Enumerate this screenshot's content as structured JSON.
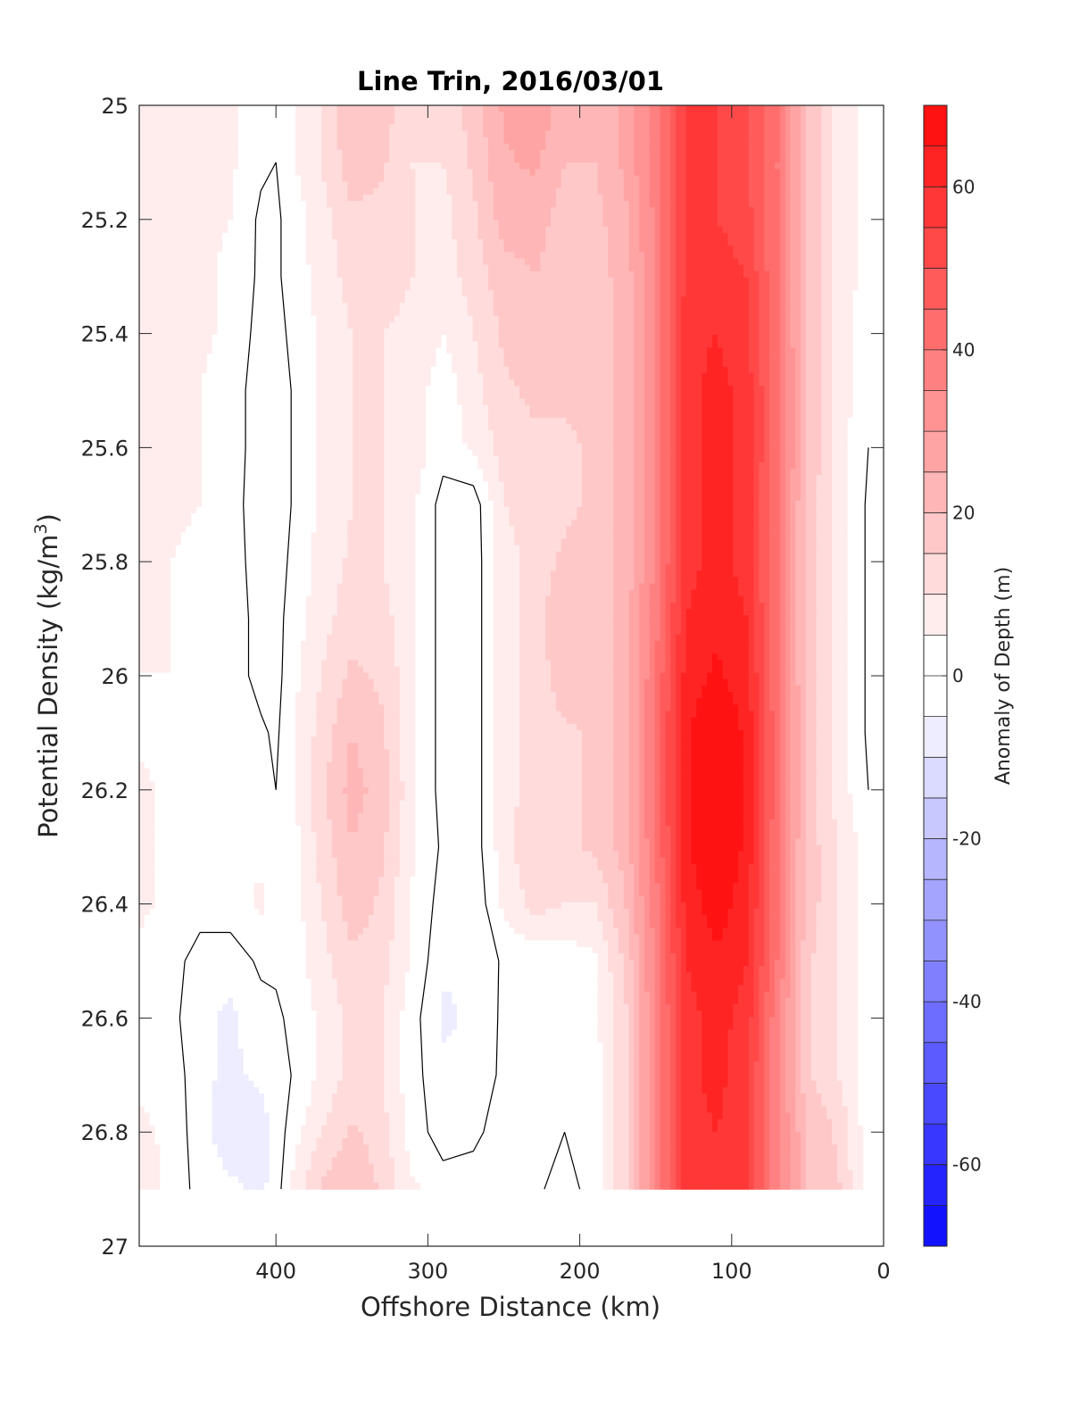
{
  "chart_data": {
    "type": "heatmap",
    "title": "Line Trin, 2016/03/01",
    "xlabel": "Offshore Distance (km)",
    "ylabel": "Potential Density (kg/m",
    "ylabel_sup": "3",
    "ylabel_close": ")",
    "colorbar_label": "Anomaly of Depth (m)",
    "xlim": [
      490,
      0
    ],
    "ylim": [
      25,
      27
    ],
    "x_reversed": true,
    "y_reversed": true,
    "xticks": [
      400,
      300,
      200,
      100,
      0
    ],
    "xtick_labels": [
      "400",
      "300",
      "200",
      "100",
      "0"
    ],
    "yticks": [
      25,
      25.2,
      25.4,
      25.6,
      25.8,
      26,
      26.2,
      26.4,
      26.6,
      26.8,
      27
    ],
    "ytick_labels": [
      "25",
      "25.2",
      "25.4",
      "25.6",
      "25.8",
      "26",
      "26.2",
      "26.4",
      "26.6",
      "26.8",
      "27"
    ],
    "clim": [
      -70,
      70
    ],
    "colorbar_ticks": [
      60,
      40,
      20,
      0,
      -20,
      -40,
      -60
    ],
    "colorbar_tick_labels": [
      "60",
      "40",
      "20",
      "0",
      "-20",
      "-40",
      "-60"
    ],
    "contour_step": 5,
    "colors": {
      "positive": "#ff0000",
      "negative": "#0000ff",
      "neutral": "#ffffff",
      "contour": "#000000"
    },
    "grid": false,
    "x": [
      490,
      470,
      450,
      430,
      410,
      400,
      390,
      370,
      350,
      330,
      310,
      290,
      270,
      250,
      230,
      210,
      190,
      170,
      150,
      130,
      110,
      90,
      70,
      50,
      30,
      10
    ],
    "y": [
      25.0,
      25.1,
      25.2,
      25.3,
      25.4,
      25.5,
      25.6,
      25.7,
      25.8,
      25.9,
      26.0,
      26.1,
      26.2,
      26.3,
      26.4,
      26.5,
      26.6,
      26.7,
      26.8,
      26.9
    ],
    "z": [
      [
        8,
        8,
        8,
        6,
        2,
        4,
        4,
        10,
        20,
        18,
        10,
        10,
        18,
        26,
        30,
        22,
        20,
        26,
        38,
        55,
        55,
        50,
        40,
        20,
        8,
        3
      ],
      [
        5,
        8,
        8,
        6,
        1,
        0,
        4,
        10,
        18,
        16,
        10,
        10,
        16,
        24,
        26,
        20,
        20,
        26,
        38,
        55,
        55,
        50,
        40,
        20,
        8,
        3
      ],
      [
        5,
        6,
        6,
        5,
        -1,
        -1,
        2,
        8,
        14,
        13,
        10,
        8,
        14,
        22,
        22,
        18,
        18,
        24,
        36,
        55,
        55,
        52,
        40,
        20,
        8,
        3
      ],
      [
        5,
        6,
        6,
        4,
        -1,
        -1,
        2,
        7,
        12,
        12,
        10,
        8,
        12,
        18,
        20,
        18,
        18,
        22,
        36,
        56,
        58,
        55,
        40,
        20,
        8,
        3
      ],
      [
        6,
        6,
        6,
        4,
        -2,
        -2,
        1,
        6,
        10,
        10,
        9,
        5,
        10,
        16,
        18,
        18,
        16,
        22,
        36,
        58,
        60,
        56,
        40,
        20,
        8,
        2
      ],
      [
        6,
        6,
        5,
        3,
        -3,
        -3,
        0,
        6,
        10,
        10,
        8,
        2,
        8,
        14,
        16,
        16,
        16,
        22,
        36,
        58,
        62,
        58,
        42,
        20,
        8,
        1
      ],
      [
        6,
        6,
        5,
        3,
        -3,
        -3,
        0,
        6,
        10,
        10,
        8,
        2,
        6,
        12,
        14,
        14,
        16,
        22,
        36,
        58,
        62,
        58,
        42,
        20,
        8,
        0
      ],
      [
        5,
        6,
        5,
        3,
        -4,
        -4,
        0,
        6,
        10,
        10,
        6,
        -2,
        -3,
        10,
        12,
        14,
        16,
        22,
        36,
        58,
        62,
        58,
        40,
        18,
        8,
        -1
      ],
      [
        5,
        5,
        4,
        3,
        -3,
        -3,
        1,
        7,
        11,
        10,
        6,
        -2,
        -3,
        8,
        12,
        16,
        16,
        22,
        36,
        58,
        62,
        58,
        40,
        18,
        8,
        -1
      ],
      [
        5,
        5,
        4,
        3,
        -2,
        -2,
        2,
        8,
        13,
        12,
        6,
        -2,
        -3,
        8,
        12,
        20,
        16,
        22,
        38,
        60,
        64,
        60,
        40,
        18,
        8,
        -1
      ],
      [
        5,
        5,
        4,
        3,
        -2,
        -2,
        3,
        10,
        16,
        14,
        6,
        -2,
        -3,
        8,
        12,
        18,
        16,
        22,
        40,
        62,
        66,
        62,
        40,
        18,
        8,
        -1
      ],
      [
        4,
        4,
        4,
        3,
        1,
        -1,
        4,
        12,
        20,
        16,
        6,
        -2,
        -3,
        8,
        12,
        14,
        16,
        22,
        42,
        64,
        70,
        64,
        42,
        18,
        8,
        -1
      ],
      [
        6,
        4,
        3,
        3,
        3,
        0,
        4,
        14,
        22,
        18,
        6,
        -2,
        -3,
        8,
        12,
        14,
        16,
        22,
        42,
        64,
        70,
        64,
        42,
        18,
        8,
        0
      ],
      [
        6,
        4,
        3,
        3,
        4,
        1,
        2,
        12,
        20,
        16,
        6,
        -1,
        -3,
        8,
        14,
        14,
        16,
        22,
        40,
        64,
        70,
        64,
        40,
        18,
        10,
        2
      ],
      [
        6,
        4,
        2,
        3,
        6,
        3,
        2,
        10,
        18,
        14,
        4,
        -2,
        -4,
        6,
        12,
        10,
        10,
        20,
        38,
        62,
        68,
        62,
        40,
        18,
        10,
        2
      ],
      [
        4,
        2,
        -2,
        -3,
        1,
        1,
        2,
        8,
        14,
        12,
        4,
        -4,
        -5,
        1,
        2,
        2,
        4,
        16,
        36,
        60,
        64,
        60,
        40,
        16,
        10,
        2
      ],
      [
        4,
        2,
        -4,
        -6,
        -2,
        -1,
        1,
        6,
        12,
        10,
        2,
        -6,
        -4,
        1,
        1,
        2,
        4,
        14,
        36,
        58,
        62,
        58,
        36,
        16,
        10,
        2
      ],
      [
        4,
        4,
        -4,
        -6,
        -4,
        -2,
        0,
        6,
        12,
        10,
        2,
        -4,
        -3,
        1,
        1,
        1,
        2,
        14,
        36,
        58,
        62,
        56,
        36,
        16,
        10,
        2
      ],
      [
        6,
        4,
        -3,
        -8,
        -8,
        -3,
        2,
        10,
        16,
        12,
        2,
        -2,
        -1,
        2,
        2,
        0,
        2,
        14,
        36,
        58,
        60,
        56,
        36,
        20,
        14,
        2
      ],
      [
        8,
        4,
        -2,
        -4,
        -6,
        -3,
        6,
        16,
        20,
        14,
        6,
        2,
        2,
        4,
        1,
        -2,
        2,
        14,
        36,
        58,
        60,
        56,
        36,
        20,
        16,
        2
      ]
    ]
  }
}
